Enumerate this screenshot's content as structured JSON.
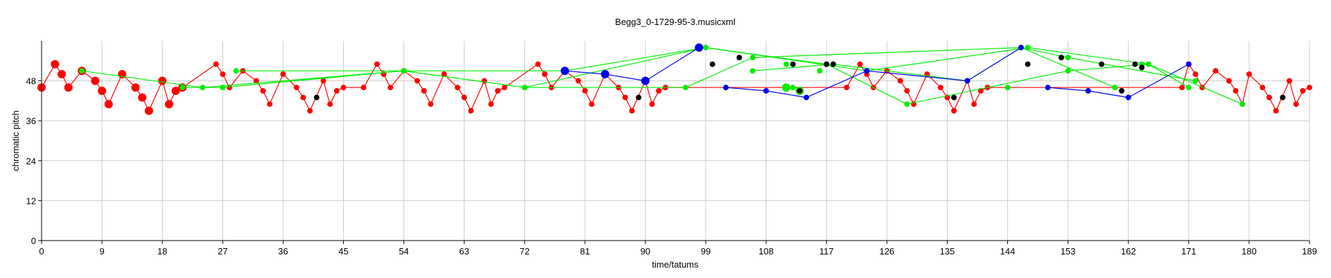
{
  "chart_data": {
    "type": "scatter",
    "title": "Begg3_0-1729-95-3.musicxml",
    "xlabel": "time/tatums",
    "ylabel": "chromatic pitch",
    "xlim": [
      0,
      189
    ],
    "ylim": [
      0,
      60
    ],
    "xticks": [
      0,
      9,
      18,
      27,
      36,
      45,
      54,
      63,
      72,
      81,
      90,
      99,
      108,
      117,
      126,
      135,
      144,
      153,
      162,
      171,
      180,
      189
    ],
    "yticks": [
      0,
      12,
      24,
      36,
      48
    ],
    "grid": true,
    "colors": {
      "red": "#ff0000",
      "green": "#00ee00",
      "blue": "#0000ee",
      "black": "#000000",
      "grid": "#cccccc"
    },
    "series": [
      {
        "color": "red",
        "line": true,
        "points": [
          [
            0,
            46,
            "L"
          ],
          [
            2,
            53,
            "L"
          ],
          [
            3,
            50,
            "L"
          ],
          [
            4,
            46,
            "L"
          ],
          [
            6,
            51,
            "L"
          ],
          [
            8,
            48,
            "L"
          ],
          [
            9,
            45,
            "L"
          ],
          [
            10,
            41,
            "L"
          ],
          [
            12,
            50,
            "L"
          ],
          [
            14,
            46,
            "L"
          ],
          [
            15,
            43,
            "L"
          ],
          [
            16,
            39,
            "L"
          ],
          [
            18,
            48,
            "L"
          ],
          [
            19,
            41,
            "L"
          ],
          [
            20,
            45,
            "L"
          ],
          [
            21,
            46,
            "L"
          ],
          [
            26,
            53,
            "S"
          ],
          [
            27,
            50,
            "S"
          ],
          [
            28,
            46,
            "S"
          ],
          [
            30,
            51,
            "S"
          ],
          [
            32,
            48,
            "S"
          ],
          [
            33,
            45,
            "S"
          ],
          [
            34,
            41,
            "S"
          ],
          [
            36,
            50,
            "S"
          ],
          [
            38,
            46,
            "S"
          ],
          [
            39,
            43,
            "S"
          ],
          [
            40,
            39,
            "S"
          ],
          [
            42,
            48,
            "S"
          ],
          [
            43,
            41,
            "S"
          ],
          [
            44,
            45,
            "S"
          ],
          [
            45,
            46,
            "S"
          ],
          [
            48,
            46,
            "S"
          ],
          [
            50,
            53,
            "S"
          ],
          [
            51,
            50,
            "S"
          ],
          [
            52,
            46,
            "S"
          ],
          [
            54,
            51,
            "S"
          ],
          [
            56,
            48,
            "S"
          ],
          [
            57,
            45,
            "S"
          ],
          [
            58,
            41,
            "S"
          ],
          [
            60,
            50,
            "S"
          ],
          [
            62,
            46,
            "S"
          ],
          [
            63,
            43,
            "S"
          ],
          [
            64,
            39,
            "S"
          ],
          [
            66,
            48,
            "S"
          ],
          [
            67,
            41,
            "S"
          ],
          [
            68,
            45,
            "S"
          ],
          [
            69,
            46,
            "S"
          ],
          [
            74,
            53,
            "S"
          ],
          [
            75,
            50,
            "S"
          ],
          [
            76,
            46,
            "S"
          ],
          [
            78,
            51,
            "S"
          ],
          [
            80,
            48,
            "S"
          ],
          [
            81,
            45,
            "S"
          ],
          [
            82,
            41,
            "S"
          ],
          [
            84,
            50,
            "S"
          ],
          [
            86,
            46,
            "S"
          ],
          [
            87,
            43,
            "S"
          ],
          [
            88,
            39,
            "S"
          ],
          [
            90,
            48,
            "S"
          ],
          [
            91,
            41,
            "S"
          ],
          [
            92,
            45,
            "S"
          ],
          [
            93,
            46,
            "S"
          ],
          [
            120,
            46,
            "S"
          ],
          [
            122,
            53,
            "S"
          ],
          [
            123,
            50,
            "S"
          ],
          [
            124,
            46,
            "S"
          ],
          [
            126,
            51,
            "S"
          ],
          [
            128,
            48,
            "S"
          ],
          [
            129,
            45,
            "S"
          ],
          [
            130,
            41,
            "S"
          ],
          [
            132,
            50,
            "S"
          ],
          [
            134,
            46,
            "S"
          ],
          [
            135,
            43,
            "S"
          ],
          [
            136,
            39,
            "S"
          ],
          [
            138,
            48,
            "S"
          ],
          [
            139,
            41,
            "S"
          ],
          [
            140,
            45,
            "S"
          ],
          [
            141,
            46,
            "S"
          ],
          [
            170,
            46,
            "S"
          ],
          [
            171,
            53,
            "S"
          ],
          [
            172,
            50,
            "S"
          ],
          [
            173,
            46,
            "S"
          ],
          [
            175,
            51,
            "S"
          ],
          [
            177,
            48,
            "S"
          ],
          [
            178,
            45,
            "S"
          ],
          [
            179,
            41,
            "S"
          ],
          [
            180,
            50,
            "S"
          ],
          [
            182,
            46,
            "S"
          ],
          [
            183,
            43,
            "S"
          ],
          [
            184,
            39,
            "S"
          ],
          [
            186,
            48,
            "S"
          ],
          [
            187,
            41,
            "S"
          ],
          [
            188,
            45,
            "S"
          ],
          [
            189,
            46,
            "S"
          ]
        ]
      },
      {
        "color": "green",
        "line": true,
        "points": [
          [
            6,
            51,
            "S"
          ],
          [
            24,
            46,
            "S"
          ],
          [
            54,
            51,
            "S"
          ],
          [
            72,
            46,
            "S"
          ],
          [
            99,
            58,
            "S"
          ],
          [
            117,
            53,
            "S"
          ],
          [
            129,
            41,
            "S"
          ],
          [
            153,
            51,
            "S"
          ],
          [
            165,
            53,
            "S"
          ],
          [
            171,
            46,
            "S"
          ]
        ]
      },
      {
        "color": "green",
        "line": true,
        "points": [
          [
            21,
            46,
            "S"
          ],
          [
            27,
            46,
            "S"
          ],
          [
            54,
            51,
            "S"
          ],
          [
            78,
            51,
            "S"
          ],
          [
            99,
            58,
            "S"
          ],
          [
            123,
            51,
            "S"
          ],
          [
            147,
            58,
            "S"
          ],
          [
            165,
            53,
            "S"
          ],
          [
            179,
            41,
            "S"
          ]
        ]
      },
      {
        "color": "green",
        "line": true,
        "points": [
          [
            29,
            51,
            "S"
          ],
          [
            54,
            51,
            "S"
          ],
          [
            72,
            46,
            "S"
          ],
          [
            96,
            46,
            "S"
          ],
          [
            106,
            55,
            "S"
          ],
          [
            146,
            58,
            "S"
          ],
          [
            160,
            46,
            "S"
          ]
        ]
      },
      {
        "color": "green",
        "line": true,
        "points": [
          [
            106,
            51,
            "S"
          ],
          [
            118,
            53,
            "S"
          ],
          [
            138,
            48,
            "S"
          ],
          [
            146,
            58,
            "S"
          ],
          [
            153,
            55,
            "S"
          ],
          [
            172,
            48,
            "S"
          ]
        ]
      },
      {
        "color": "green",
        "line": false,
        "points": [
          [
            111,
            53,
            "S"
          ],
          [
            116,
            51,
            "S"
          ],
          [
            144,
            46,
            "S"
          ],
          [
            152,
            55,
            "S"
          ],
          [
            164,
            53,
            "S"
          ],
          [
            111,
            46,
            "L"
          ],
          [
            112,
            46,
            "S"
          ],
          [
            113,
            45,
            "L"
          ]
        ]
      },
      {
        "color": "blue",
        "line": true,
        "points": [
          [
            78,
            51,
            "L"
          ],
          [
            84,
            50,
            "L"
          ],
          [
            90,
            48,
            "L"
          ],
          [
            98,
            58,
            "L"
          ]
        ]
      },
      {
        "color": "blue",
        "line": true,
        "points": [
          [
            102,
            46,
            "S"
          ],
          [
            108,
            45,
            "S"
          ],
          [
            114,
            43,
            "S"
          ],
          [
            123,
            51,
            "S"
          ],
          [
            138,
            48,
            "S"
          ],
          [
            146,
            58,
            "S"
          ]
        ]
      },
      {
        "color": "blue",
        "line": true,
        "points": [
          [
            150,
            46,
            "S"
          ],
          [
            156,
            45,
            "S"
          ],
          [
            162,
            43,
            "S"
          ],
          [
            171,
            53,
            "S"
          ]
        ]
      },
      {
        "color": "black",
        "line": false,
        "points": [
          [
            41,
            43,
            "S"
          ],
          [
            89,
            43,
            "S"
          ],
          [
            100,
            53,
            "S"
          ],
          [
            104,
            55,
            "S"
          ],
          [
            112,
            53,
            "S"
          ],
          [
            113,
            45,
            "S"
          ],
          [
            117,
            53,
            "S"
          ],
          [
            118,
            53,
            "S"
          ],
          [
            136,
            43,
            "S"
          ],
          [
            147,
            53,
            "S"
          ],
          [
            152,
            55,
            "S"
          ],
          [
            158,
            53,
            "S"
          ],
          [
            161,
            45,
            "S"
          ],
          [
            163,
            53,
            "S"
          ],
          [
            164,
            52,
            "S"
          ],
          [
            185,
            43,
            "S"
          ]
        ]
      }
    ]
  }
}
